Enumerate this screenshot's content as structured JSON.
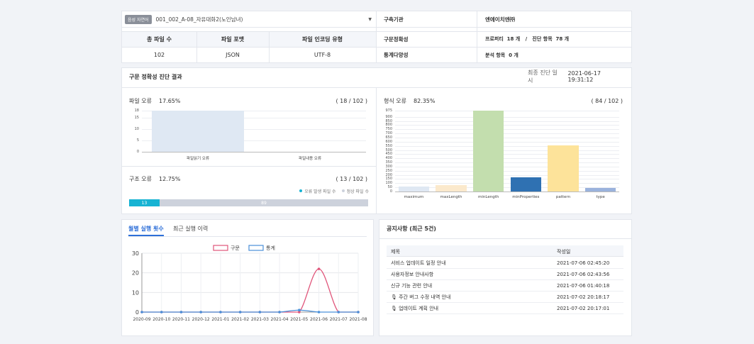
{
  "header": {
    "badge": "음성 자연어",
    "dataset": "001_002_A-08_자유대화2(노인남녀)",
    "org_label": "구축기관",
    "org_value": "엔에이치엔㈜"
  },
  "summary": {
    "headers": [
      "총 파일 수",
      "파일 포맷",
      "파일 인코딩 유형"
    ],
    "values": [
      "102",
      "JSON",
      "UTF-8"
    ],
    "syntax_label": "구문정확성",
    "syntax_value": "프로퍼티  18 개   /   진단 항목  78 개",
    "stats_label": "통계다양성",
    "stats_value": "분석 항목  0 개"
  },
  "diagnosis": {
    "title": "구문 정확성 진단 결과",
    "date_label": "최종 진단 일시",
    "date_value": "2021-06-17 19:31:12"
  },
  "file_error": {
    "label": "파일 오류",
    "percent": "17.65%",
    "count": "( 18 / 102 )"
  },
  "format_error": {
    "label": "형식 오류",
    "percent": "82.35%",
    "count": "( 84 / 102 )"
  },
  "struct_error": {
    "label": "구조 오류",
    "percent": "12.75%",
    "count": "( 13 / 102 )",
    "legend_error": "오류 발생 파일 수",
    "legend_normal": "정상 파일 수",
    "error_value": "13",
    "normal_value": "89",
    "error_fraction": 0.1275,
    "error_color": "#17b3d3",
    "normal_color": "#cdd2dc"
  },
  "tabs": {
    "monthly": "월별 실행 횟수",
    "recent": "최근 실행 이력"
  },
  "notice": {
    "title": "공지사항 (최근 5건)",
    "col_title": "제목",
    "col_date": "작성일",
    "rows": [
      {
        "title": "서비스 업데이트 일정 안내",
        "date": "2021-07-06 02:45:20"
      },
      {
        "title": "사용자정보 안내사항",
        "date": "2021-07-06 02:43:56"
      },
      {
        "title": "신규 기능 관련 안내",
        "date": "2021-07-06 01:40:18"
      },
      {
        "title": "🎙 주간 버그 수정 내역 안내",
        "date": "2021-07-02 20:18:17"
      },
      {
        "title": "🎙 업데이트 계획 안내",
        "date": "2021-07-02 20:17:01"
      }
    ]
  },
  "chart_data": [
    {
      "type": "bar",
      "categories": [
        "파일읽기 오류",
        "파일내용 오류"
      ],
      "values": [
        18,
        0
      ],
      "ylim": [
        0,
        18
      ],
      "yticks": [
        0,
        5,
        10,
        15,
        18
      ],
      "colors": [
        "#dfe8f3",
        "#dfe8f3"
      ]
    },
    {
      "type": "bar",
      "categories": [
        "maximum",
        "maxLength",
        "minLength",
        "minProperties",
        "pattern",
        "type"
      ],
      "values": [
        60,
        80,
        975,
        175,
        555,
        45
      ],
      "ylim": [
        0,
        975
      ],
      "yticks": [
        0,
        50,
        100,
        150,
        200,
        250,
        300,
        350,
        400,
        450,
        500,
        550,
        600,
        650,
        700,
        750,
        800,
        850,
        900,
        975
      ],
      "colors": [
        "#dfe8f3",
        "#fbe9cc",
        "#c3deae",
        "#2f71b2",
        "#fde39a",
        "#9ab2dc"
      ]
    },
    {
      "type": "line",
      "categories": [
        "2020-09",
        "2020-10",
        "2020-11",
        "2020-12",
        "2021-01",
        "2021-02",
        "2021-03",
        "2021-04",
        "2021-05",
        "2021-06",
        "2021-07",
        "2021-08"
      ],
      "ylim": [
        0,
        30
      ],
      "yticks": [
        0,
        10,
        20,
        30
      ],
      "series": [
        {
          "name": "구문",
          "values": [
            0,
            0,
            0,
            0,
            0,
            0,
            0,
            0,
            0,
            22,
            0,
            0
          ],
          "color": "#e0557a"
        },
        {
          "name": "통계",
          "values": [
            0,
            0,
            0,
            0,
            0,
            0,
            0,
            0,
            1,
            0,
            0,
            0
          ],
          "color": "#4a90d9"
        }
      ]
    }
  ]
}
